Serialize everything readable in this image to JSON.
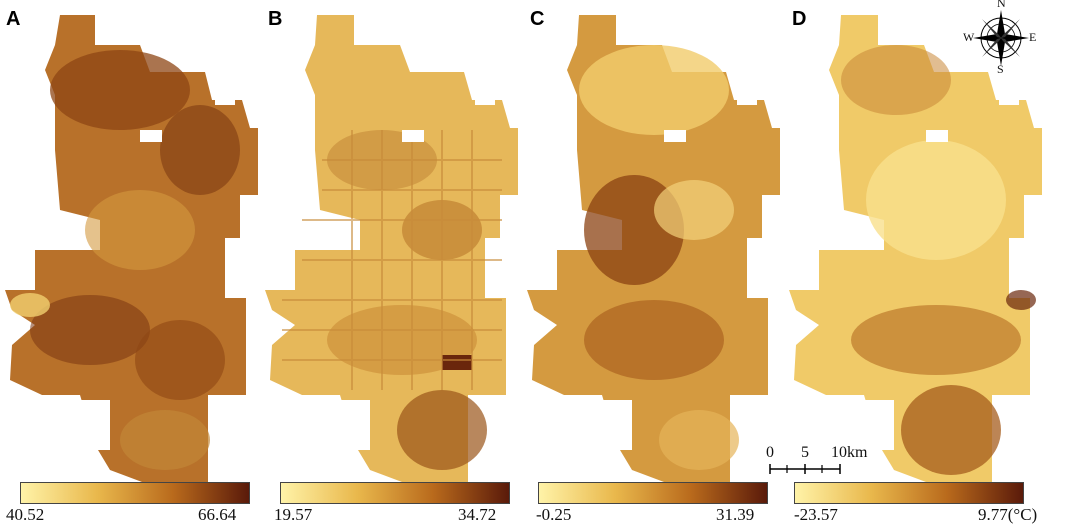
{
  "panels": [
    {
      "letter": "A",
      "min": "40.52",
      "max": "66.64",
      "colors": [
        "#fff3a8",
        "#e9b84c",
        "#b96a1c",
        "#5a1a0a"
      ]
    },
    {
      "letter": "B",
      "min": "19.57",
      "max": "34.72",
      "colors": [
        "#fff3a8",
        "#e9b84c",
        "#b96a1c",
        "#5a1a0a"
      ]
    },
    {
      "letter": "C",
      "min": "-0.25",
      "max": "31.39",
      "colors": [
        "#fff3a8",
        "#e9b84c",
        "#b96a1c",
        "#5a1a0a"
      ]
    },
    {
      "letter": "D",
      "min": "-23.57",
      "max": "9.77(°C)",
      "colors": [
        "#fff3a8",
        "#e9b84c",
        "#b96a1c",
        "#5a1a0a"
      ]
    }
  ],
  "compass": {
    "n": "N",
    "s": "S",
    "e": "E",
    "w": "W",
    "icon": "compass-rose-icon"
  },
  "scale": {
    "ticks": [
      "0",
      "5",
      "10km"
    ]
  },
  "map_colors": {
    "light": "#f7d373",
    "mid": "#dba443",
    "dark": "#a55a18",
    "darkest": "#6a260c"
  }
}
